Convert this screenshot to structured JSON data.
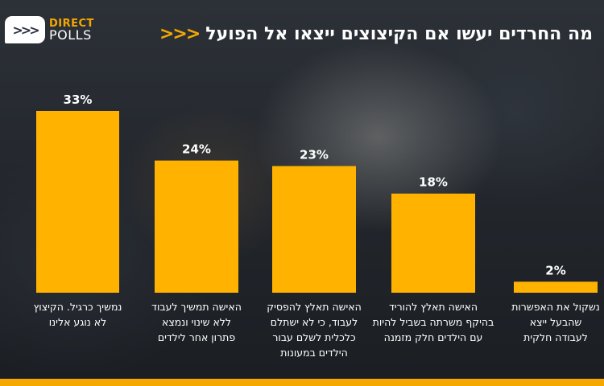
{
  "logo": {
    "line1": "DIRECT",
    "line2": "POLLS",
    "icon": "chevron-triple-icon"
  },
  "title": "מה החרדים יעשו אם הקיצוצים ייצאו אל הפועל",
  "title_arrows": "<<<",
  "colors": {
    "accent": "#f5a800",
    "bar": "#ffb300",
    "text": "#ffffff"
  },
  "chart_data": {
    "type": "bar",
    "title": "מה החרדים יעשו אם הקיצוצים ייצאו אל הפועל",
    "categories": [
      [
        "נמשיך כרגיל. הקיצוץ",
        "לא נוגע אלינו"
      ],
      [
        "האישה תמשיך לעבוד",
        "ללא שינוי ונמצא",
        "פתרון אחר לילדים"
      ],
      [
        "האישה תאלץ להפסיק",
        "לעבוד, כי לא ישתלם",
        "כלכלית לשלם עבור",
        "הילדים במעונות"
      ],
      [
        "האישה תאלץ להוריד",
        "בהיקף משרתה בשביל להיות",
        "עם הילדים חלק מזמנה"
      ],
      [
        "נשקול את האפשרות",
        "שהבעל ייצא",
        "לעבודה חלקית"
      ]
    ],
    "values": [
      33,
      24,
      23,
      18,
      2
    ],
    "value_labels": [
      "33%",
      "24%",
      "23%",
      "18%",
      "2%"
    ],
    "ylim": [
      0,
      33
    ],
    "grid": false,
    "legend": "none"
  }
}
